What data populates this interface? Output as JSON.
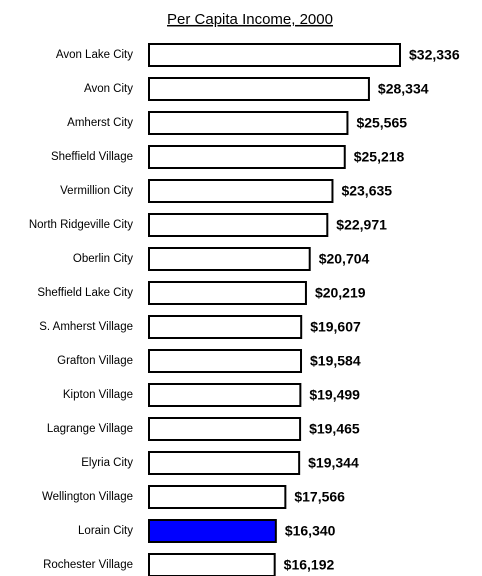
{
  "chart_data": {
    "type": "bar",
    "orientation": "horizontal",
    "title": "Per Capita Income, 2000",
    "categories": [
      "Avon Lake City",
      "Avon City",
      "Amherst City",
      "Sheffield Village",
      "Vermillion City",
      "North Ridgeville City",
      "Oberlin City",
      "Sheffield Lake City",
      "S. Amherst Village",
      "Grafton Village",
      "Kipton Village",
      "Lagrange Village",
      "Elyria City",
      "Wellington Village",
      "Lorain City",
      "Rochester Village"
    ],
    "values": [
      32336,
      28334,
      25565,
      25218,
      23635,
      22971,
      20704,
      20219,
      19607,
      19584,
      19499,
      19465,
      19344,
      17566,
      16340,
      16192
    ],
    "value_labels": [
      "$32,336",
      "$28,334",
      "$25,565",
      "$25,218",
      "$23,635",
      "$22,971",
      "$20,704",
      "$20,219",
      "$19,607",
      "$19,584",
      "$19,499",
      "$19,465",
      "$19,344",
      "$17,566",
      "$16,340",
      "$16,192"
    ],
    "colors": [
      "#ffffff",
      "#ffffff",
      "#ffffff",
      "#ffffff",
      "#ffffff",
      "#ffffff",
      "#ffffff",
      "#ffffff",
      "#ffffff",
      "#ffffff",
      "#ffffff",
      "#ffffff",
      "#ffffff",
      "#ffffff",
      "#0000ff",
      "#ffffff"
    ]
  }
}
